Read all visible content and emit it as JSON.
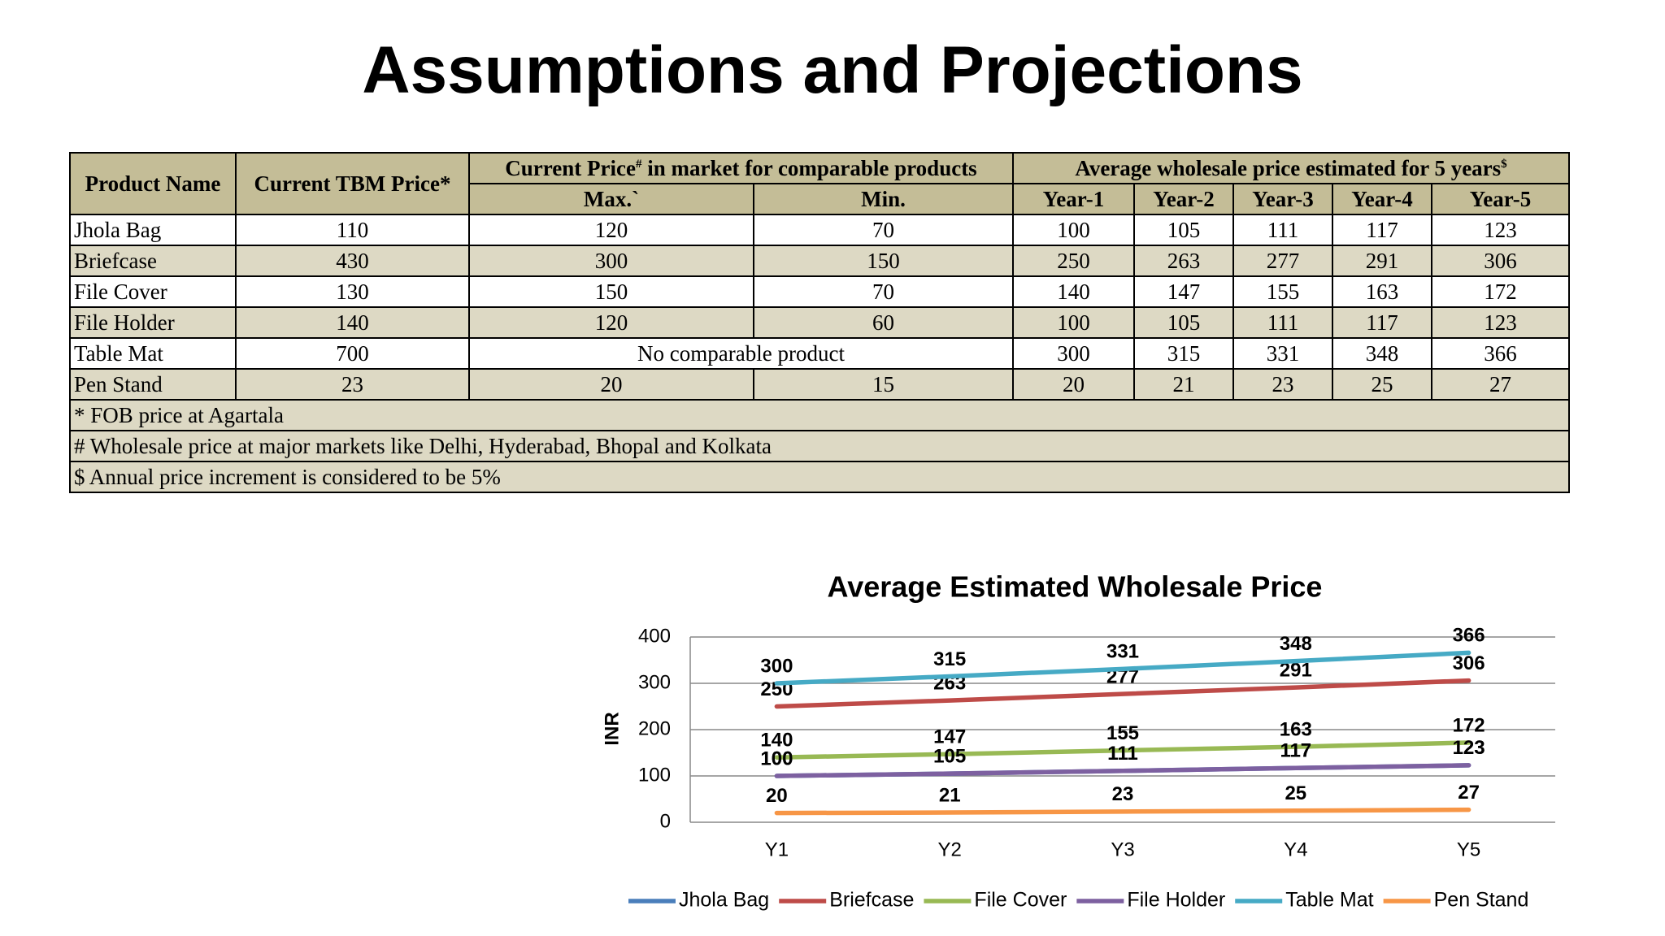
{
  "title": "Assumptions and Projections",
  "table": {
    "header": [
      "Product Name",
      "Current TBM Price*"
    ],
    "groups": [
      {
        "text": "Current Price",
        "sup": "#",
        "rest": " in market for comparable products"
      },
      {
        "text": "Average wholesale price estimated for 5 years",
        "sup": "$"
      }
    ],
    "subheader": [
      "Max.`",
      "Min.",
      "Year-1",
      "Year-2",
      "Year-3",
      "Year-4",
      "Year-5"
    ],
    "rows": [
      [
        "Jhola Bag",
        110,
        120,
        70,
        100,
        105,
        111,
        117,
        123
      ],
      [
        "Briefcase",
        430,
        300,
        150,
        250,
        263,
        277,
        291,
        306
      ],
      [
        "File Cover",
        130,
        150,
        70,
        140,
        147,
        155,
        163,
        172
      ],
      [
        "File Holder",
        140,
        120,
        60,
        100,
        105,
        111,
        117,
        123
      ],
      [
        "Table Mat",
        700,
        "No comparable product",
        300,
        315,
        331,
        348,
        366
      ],
      [
        "Pen Stand",
        23,
        20,
        15,
        20,
        21,
        23,
        25,
        27
      ]
    ],
    "notes": [
      "* FOB price at Agartala",
      "#  Wholesale price at major markets like Delhi, Hyderabad, Bhopal and Kolkata",
      "$ Annual price increment is considered to be 5%"
    ]
  },
  "chart_data": {
    "type": "line",
    "title": "Average Estimated Wholesale Price",
    "y_label": "INR",
    "categories": [
      "Y1",
      "Y2",
      "Y3",
      "Y4",
      "Y5"
    ],
    "ylim": [
      0,
      400
    ],
    "yticks": [
      0,
      100,
      200,
      300,
      400
    ],
    "grid": true,
    "legend": "bottom",
    "series": [
      {
        "name": "Jhola Bag",
        "color": "#4a7ebb",
        "values": [
          100,
          105,
          111,
          117,
          123
        ]
      },
      {
        "name": "Briefcase",
        "color": "#be4b48",
        "values": [
          250,
          263,
          277,
          291,
          306
        ]
      },
      {
        "name": "File Cover",
        "color": "#98b954",
        "values": [
          140,
          147,
          155,
          163,
          172
        ]
      },
      {
        "name": "File Holder",
        "color": "#7d60a0",
        "values": [
          100,
          105,
          111,
          117,
          123
        ]
      },
      {
        "name": "Table Mat",
        "color": "#46aac5",
        "values": [
          300,
          315,
          331,
          348,
          366
        ]
      },
      {
        "name": "Pen Stand",
        "color": "#f79646",
        "values": [
          20,
          21,
          23,
          25,
          27
        ]
      }
    ]
  }
}
